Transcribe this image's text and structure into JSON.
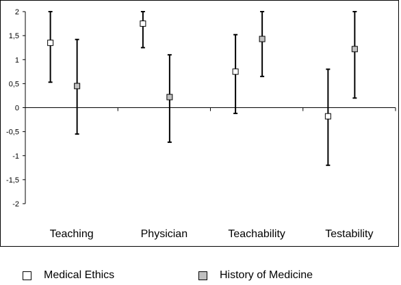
{
  "chart_data": {
    "type": "scatter",
    "categories": [
      "Teaching",
      "Physician",
      "Teachability",
      "Testability"
    ],
    "ylim": [
      -2,
      2
    ],
    "yticks": [
      "2",
      "1,5",
      "1",
      "0,5",
      "0",
      "-0,5",
      "-1",
      "-1,5",
      "-2"
    ],
    "ytick_values": [
      2,
      1.5,
      1,
      0.5,
      0,
      -0.5,
      -1,
      -1.5,
      -2
    ],
    "grid": false,
    "legend_position": "bottom",
    "series": [
      {
        "name": "Medical Ethics",
        "color": "#ffffff",
        "values": [
          1.35,
          1.75,
          0.75,
          -0.18
        ],
        "lower": [
          0.53,
          1.25,
          -0.12,
          -1.2
        ],
        "upper": [
          2.0,
          2.0,
          1.52,
          0.8
        ]
      },
      {
        "name": "History of Medicine",
        "color": "#c0c0c0",
        "values": [
          0.45,
          0.22,
          1.43,
          1.22
        ],
        "lower": [
          -0.55,
          -0.72,
          0.65,
          0.2
        ],
        "upper": [
          1.42,
          1.1,
          2.0,
          2.0
        ]
      }
    ]
  }
}
